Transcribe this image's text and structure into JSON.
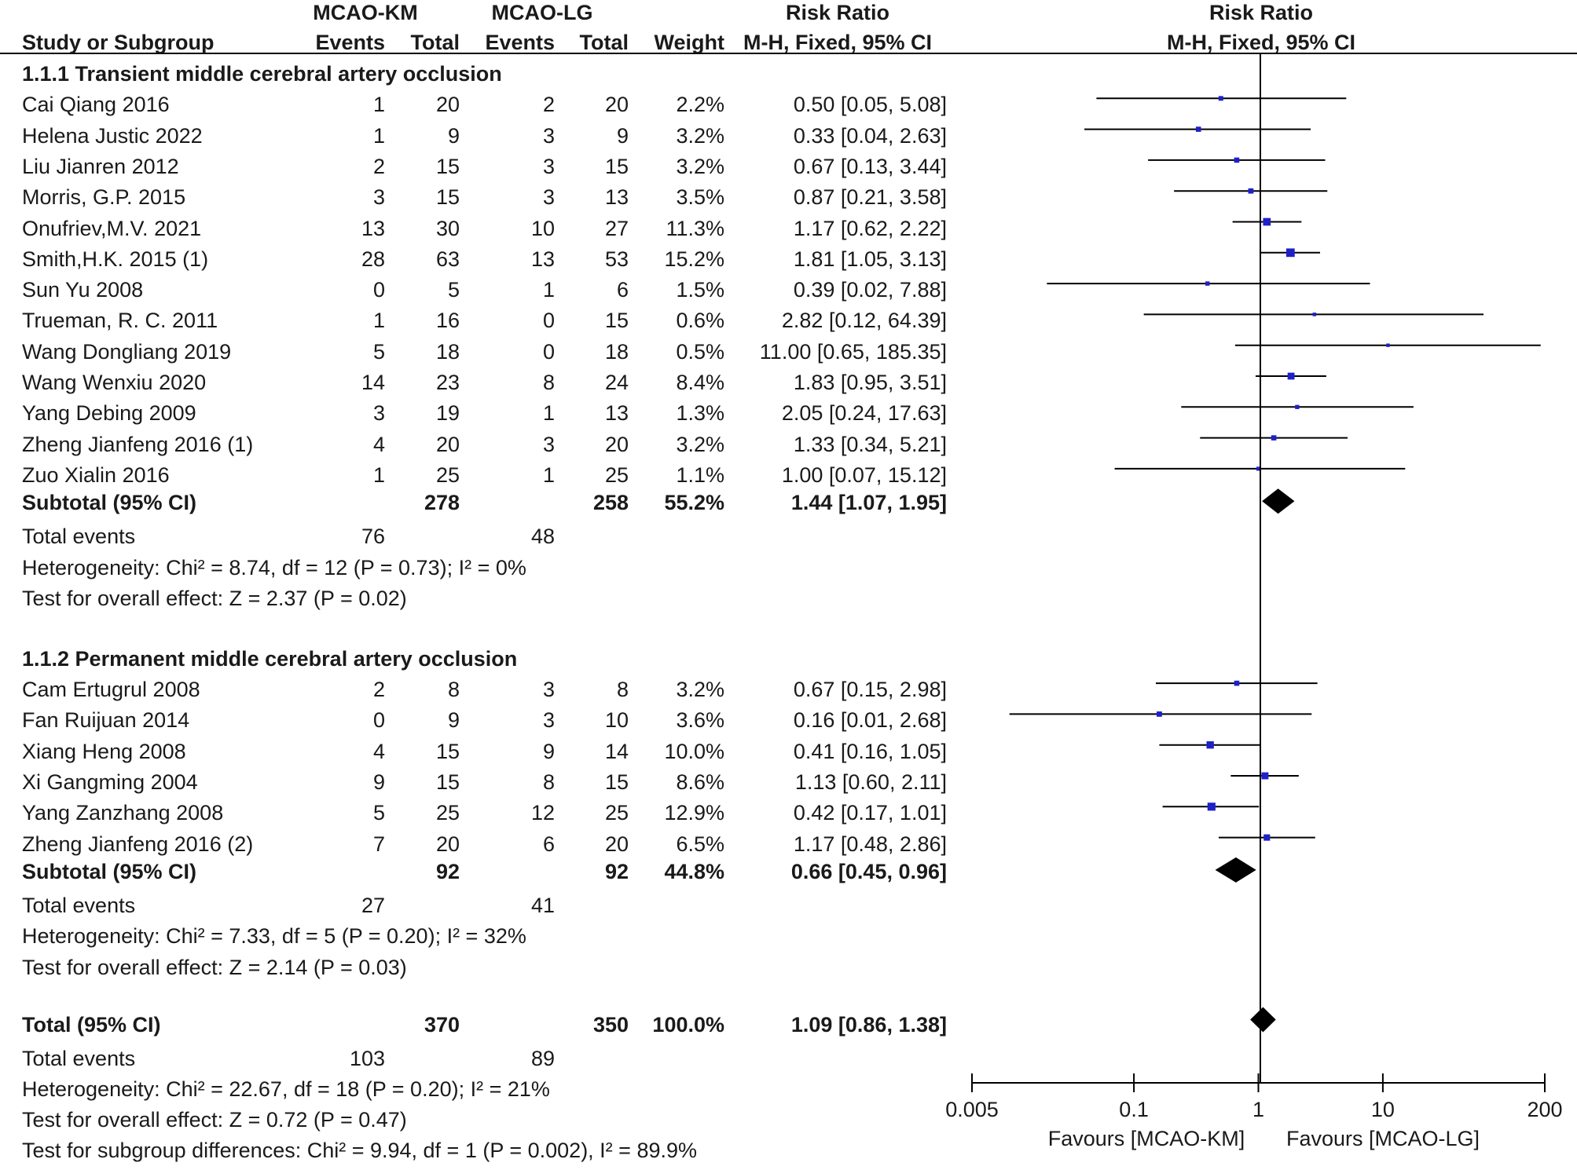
{
  "chart_data": {
    "type": "forest",
    "measure": "Risk Ratio",
    "method": "M-H, Fixed, 95% CI",
    "header": {
      "group1": "MCAO-KM",
      "group2": "MCAO-LG",
      "study_col": "Study or Subgroup",
      "events": "Events",
      "total": "Total",
      "weight": "Weight",
      "measure": "Risk Ratio",
      "method": "M-H, Fixed, 95% CI",
      "plot_title": "Risk Ratio",
      "plot_method": "M-H, Fixed, 95% CI"
    },
    "subgroups": [
      {
        "title": "1.1.1 Transient middle cerebral artery occlusion",
        "studies": [
          {
            "name": "Cai Qiang 2016",
            "e1": "1",
            "t1": "20",
            "e2": "2",
            "t2": "20",
            "weight": "2.2%",
            "ci_text": "0.50 [0.05, 5.08]",
            "rr": 0.5,
            "lo": 0.05,
            "hi": 5.08
          },
          {
            "name": "Helena Justic 2022",
            "e1": "1",
            "t1": "9",
            "e2": "3",
            "t2": "9",
            "weight": "3.2%",
            "ci_text": "0.33 [0.04, 2.63]",
            "rr": 0.33,
            "lo": 0.04,
            "hi": 2.63
          },
          {
            "name": "Liu Jianren 2012",
            "e1": "2",
            "t1": "15",
            "e2": "3",
            "t2": "15",
            "weight": "3.2%",
            "ci_text": "0.67 [0.13, 3.44]",
            "rr": 0.67,
            "lo": 0.13,
            "hi": 3.44
          },
          {
            "name": "Morris, G.P. 2015",
            "e1": "3",
            "t1": "15",
            "e2": "3",
            "t2": "13",
            "weight": "3.5%",
            "ci_text": "0.87 [0.21, 3.58]",
            "rr": 0.87,
            "lo": 0.21,
            "hi": 3.58
          },
          {
            "name": "Onufriev,M.V. 2021",
            "e1": "13",
            "t1": "30",
            "e2": "10",
            "t2": "27",
            "weight": "11.3%",
            "ci_text": "1.17 [0.62, 2.22]",
            "rr": 1.17,
            "lo": 0.62,
            "hi": 2.22
          },
          {
            "name": "Smith,H.K. 2015 (1)",
            "e1": "28",
            "t1": "63",
            "e2": "13",
            "t2": "53",
            "weight": "15.2%",
            "ci_text": "1.81 [1.05, 3.13]",
            "rr": 1.81,
            "lo": 1.05,
            "hi": 3.13
          },
          {
            "name": "Sun Yu 2008",
            "e1": "0",
            "t1": "5",
            "e2": "1",
            "t2": "6",
            "weight": "1.5%",
            "ci_text": "0.39 [0.02, 7.88]",
            "rr": 0.39,
            "lo": 0.02,
            "hi": 7.88
          },
          {
            "name": "Trueman, R. C. 2011",
            "e1": "1",
            "t1": "16",
            "e2": "0",
            "t2": "15",
            "weight": "0.6%",
            "ci_text": "2.82 [0.12, 64.39]",
            "rr": 2.82,
            "lo": 0.12,
            "hi": 64.39
          },
          {
            "name": "Wang Dongliang 2019",
            "e1": "5",
            "t1": "18",
            "e2": "0",
            "t2": "18",
            "weight": "0.5%",
            "ci_text": "11.00 [0.65, 185.35]",
            "rr": 11.0,
            "lo": 0.65,
            "hi": 185.35
          },
          {
            "name": "Wang Wenxiu 2020",
            "e1": "14",
            "t1": "23",
            "e2": "8",
            "t2": "24",
            "weight": "8.4%",
            "ci_text": "1.83 [0.95, 3.51]",
            "rr": 1.83,
            "lo": 0.95,
            "hi": 3.51
          },
          {
            "name": "Yang Debing 2009",
            "e1": "3",
            "t1": "19",
            "e2": "1",
            "t2": "13",
            "weight": "1.3%",
            "ci_text": "2.05 [0.24, 17.63]",
            "rr": 2.05,
            "lo": 0.24,
            "hi": 17.63
          },
          {
            "name": "Zheng Jianfeng 2016 (1)",
            "e1": "4",
            "t1": "20",
            "e2": "3",
            "t2": "20",
            "weight": "3.2%",
            "ci_text": "1.33 [0.34, 5.21]",
            "rr": 1.33,
            "lo": 0.34,
            "hi": 5.21
          },
          {
            "name": "Zuo Xialin 2016",
            "e1": "1",
            "t1": "25",
            "e2": "1",
            "t2": "25",
            "weight": "1.1%",
            "ci_text": "1.00 [0.07, 15.12]",
            "rr": 1.0,
            "lo": 0.07,
            "hi": 15.12
          }
        ],
        "subtotal": {
          "label": "Subtotal (95% CI)",
          "t1": "278",
          "t2": "258",
          "weight": "55.2%",
          "ci_text": "1.44 [1.07, 1.95]",
          "rr": 1.44,
          "lo": 1.07,
          "hi": 1.95
        },
        "events": {
          "label": "Total events",
          "e1": "76",
          "e2": "48"
        },
        "heterogeneity": "Heterogeneity: Chi² = 8.74, df = 12 (P = 0.73); I² = 0%",
        "overall": "Test for overall effect: Z = 2.37 (P = 0.02)"
      },
      {
        "title": "1.1.2 Permanent middle cerebral artery occlusion",
        "studies": [
          {
            "name": "Cam Ertugrul 2008",
            "e1": "2",
            "t1": "8",
            "e2": "3",
            "t2": "8",
            "weight": "3.2%",
            "ci_text": "0.67 [0.15, 2.98]",
            "rr": 0.67,
            "lo": 0.15,
            "hi": 2.98
          },
          {
            "name": "Fan Ruijuan 2014",
            "e1": "0",
            "t1": "9",
            "e2": "3",
            "t2": "10",
            "weight": "3.6%",
            "ci_text": "0.16 [0.01, 2.68]",
            "rr": 0.16,
            "lo": 0.01,
            "hi": 2.68
          },
          {
            "name": "Xiang Heng 2008",
            "e1": "4",
            "t1": "15",
            "e2": "9",
            "t2": "14",
            "weight": "10.0%",
            "ci_text": "0.41 [0.16, 1.05]",
            "rr": 0.41,
            "lo": 0.16,
            "hi": 1.05
          },
          {
            "name": "Xi Gangming 2004",
            "e1": "9",
            "t1": "15",
            "e2": "8",
            "t2": "15",
            "weight": "8.6%",
            "ci_text": "1.13 [0.60, 2.11]",
            "rr": 1.13,
            "lo": 0.6,
            "hi": 2.11
          },
          {
            "name": "Yang Zanzhang 2008",
            "e1": "5",
            "t1": "25",
            "e2": "12",
            "t2": "25",
            "weight": "12.9%",
            "ci_text": "0.42 [0.17, 1.01]",
            "rr": 0.42,
            "lo": 0.17,
            "hi": 1.01
          },
          {
            "name": "Zheng Jianfeng 2016 (2)",
            "e1": "7",
            "t1": "20",
            "e2": "6",
            "t2": "20",
            "weight": "6.5%",
            "ci_text": "1.17 [0.48, 2.86]",
            "rr": 1.17,
            "lo": 0.48,
            "hi": 2.86
          }
        ],
        "subtotal": {
          "label": "Subtotal (95% CI)",
          "t1": "92",
          "t2": "92",
          "weight": "44.8%",
          "ci_text": "0.66 [0.45, 0.96]",
          "rr": 0.66,
          "lo": 0.45,
          "hi": 0.96
        },
        "events": {
          "label": "Total events",
          "e1": "27",
          "e2": "41"
        },
        "heterogeneity": "Heterogeneity: Chi² = 7.33, df = 5 (P = 0.20); I² = 32%",
        "overall": "Test for overall effect: Z = 2.14 (P = 0.03)"
      }
    ],
    "total": {
      "label": "Total (95% CI)",
      "t1": "370",
      "t2": "350",
      "weight": "100.0%",
      "ci_text": "1.09 [0.86, 1.38]",
      "rr": 1.09,
      "lo": 0.86,
      "hi": 1.38
    },
    "total_events": {
      "label": "Total events",
      "e1": "103",
      "e2": "89"
    },
    "total_heterogeneity": "Heterogeneity: Chi² = 22.67, df = 18 (P = 0.20); I² = 21%",
    "total_overall": "Test for overall effect: Z = 0.72 (P = 0.47)",
    "subgroup_test": "Test for subgroup differences: Chi² = 9.94, df = 1 (P = 0.002), I² = 89.9%",
    "x_axis": {
      "scale": "log",
      "range": [
        0.005,
        200
      ],
      "ticks": [
        0.005,
        0.1,
        1,
        10,
        200
      ],
      "tick_labels": [
        "0.005",
        "0.1",
        "1",
        "10",
        "200"
      ],
      "null_value": 1,
      "left_label": "Favours [MCAO-KM]",
      "right_label": "Favours [MCAO-LG]"
    },
    "colors": {
      "study_marker": "#2020c8",
      "diamond": "#000000",
      "line": "#000000",
      "text": "#1a1a1a"
    }
  }
}
